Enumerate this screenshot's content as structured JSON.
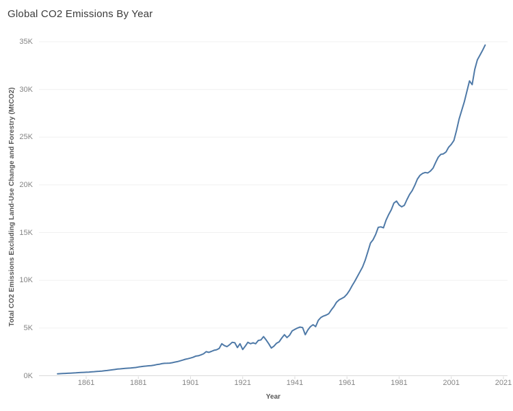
{
  "title": "Global CO2 Emissions By Year",
  "chart_data": {
    "type": "line",
    "title": "Global CO2 Emissions By Year",
    "xlabel": "Year",
    "ylabel": "Total CO2 Emissions Excluding Land-Use Change and Forestry (MtCO2)",
    "x_tick_values": [
      1861,
      1881,
      1901,
      1921,
      1941,
      1961,
      1981,
      2001,
      2021
    ],
    "x_tick_labels": [
      "1861",
      "1881",
      "1901",
      "1921",
      "1941",
      "1961",
      "1981",
      "2001",
      "2021"
    ],
    "y_tick_values": [
      0,
      5000,
      10000,
      15000,
      20000,
      25000,
      30000,
      35000
    ],
    "y_tick_labels": [
      "0K",
      "5K",
      "10K",
      "15K",
      "20K",
      "25K",
      "30K",
      "35K"
    ],
    "xlim": [
      1850,
      2022
    ],
    "ylim": [
      0,
      36200
    ],
    "grid": "horizontal-only",
    "legend": "none",
    "line_color": "#4e79a7",
    "series": [
      {
        "name": "Total CO2 Emissions Excluding Land-Use Change and Forestry (MtCO2)",
        "points": [
          [
            1850,
            200
          ],
          [
            1851,
            215
          ],
          [
            1852,
            230
          ],
          [
            1853,
            245
          ],
          [
            1854,
            260
          ],
          [
            1855,
            275
          ],
          [
            1856,
            290
          ],
          [
            1857,
            305
          ],
          [
            1858,
            320
          ],
          [
            1859,
            335
          ],
          [
            1860,
            350
          ],
          [
            1861,
            365
          ],
          [
            1862,
            380
          ],
          [
            1863,
            400
          ],
          [
            1864,
            420
          ],
          [
            1865,
            450
          ],
          [
            1866,
            470
          ],
          [
            1867,
            490
          ],
          [
            1868,
            515
          ],
          [
            1869,
            545
          ],
          [
            1870,
            580
          ],
          [
            1871,
            620
          ],
          [
            1872,
            655
          ],
          [
            1873,
            695
          ],
          [
            1874,
            715
          ],
          [
            1875,
            745
          ],
          [
            1876,
            770
          ],
          [
            1877,
            790
          ],
          [
            1878,
            805
          ],
          [
            1879,
            835
          ],
          [
            1880,
            865
          ],
          [
            1881,
            910
          ],
          [
            1882,
            950
          ],
          [
            1883,
            990
          ],
          [
            1884,
            1015
          ],
          [
            1885,
            1040
          ],
          [
            1886,
            1065
          ],
          [
            1887,
            1105
          ],
          [
            1888,
            1160
          ],
          [
            1889,
            1200
          ],
          [
            1890,
            1260
          ],
          [
            1891,
            1300
          ],
          [
            1892,
            1310
          ],
          [
            1893,
            1320
          ],
          [
            1894,
            1365
          ],
          [
            1895,
            1430
          ],
          [
            1896,
            1480
          ],
          [
            1897,
            1560
          ],
          [
            1898,
            1640
          ],
          [
            1899,
            1720
          ],
          [
            1900,
            1780
          ],
          [
            1901,
            1850
          ],
          [
            1902,
            1930
          ],
          [
            1903,
            2050
          ],
          [
            1904,
            2090
          ],
          [
            1905,
            2180
          ],
          [
            1906,
            2300
          ],
          [
            1907,
            2520
          ],
          [
            1908,
            2450
          ],
          [
            1909,
            2550
          ],
          [
            1910,
            2660
          ],
          [
            1911,
            2720
          ],
          [
            1912,
            2860
          ],
          [
            1913,
            3350
          ],
          [
            1914,
            3150
          ],
          [
            1915,
            3050
          ],
          [
            1916,
            3250
          ],
          [
            1917,
            3500
          ],
          [
            1918,
            3450
          ],
          [
            1919,
            2950
          ],
          [
            1920,
            3350
          ],
          [
            1921,
            2750
          ],
          [
            1922,
            3100
          ],
          [
            1923,
            3500
          ],
          [
            1924,
            3350
          ],
          [
            1925,
            3450
          ],
          [
            1926,
            3350
          ],
          [
            1927,
            3700
          ],
          [
            1928,
            3750
          ],
          [
            1929,
            4100
          ],
          [
            1930,
            3750
          ],
          [
            1931,
            3350
          ],
          [
            1932,
            2900
          ],
          [
            1933,
            3100
          ],
          [
            1934,
            3400
          ],
          [
            1935,
            3550
          ],
          [
            1936,
            3950
          ],
          [
            1937,
            4300
          ],
          [
            1938,
            4000
          ],
          [
            1939,
            4250
          ],
          [
            1940,
            4700
          ],
          [
            1941,
            4850
          ],
          [
            1942,
            5000
          ],
          [
            1943,
            5100
          ],
          [
            1944,
            5050
          ],
          [
            1945,
            4300
          ],
          [
            1946,
            4800
          ],
          [
            1947,
            5150
          ],
          [
            1948,
            5350
          ],
          [
            1949,
            5150
          ],
          [
            1950,
            5800
          ],
          [
            1951,
            6100
          ],
          [
            1952,
            6250
          ],
          [
            1953,
            6350
          ],
          [
            1954,
            6500
          ],
          [
            1955,
            6900
          ],
          [
            1956,
            7250
          ],
          [
            1957,
            7700
          ],
          [
            1958,
            7950
          ],
          [
            1959,
            8100
          ],
          [
            1960,
            8250
          ],
          [
            1961,
            8550
          ],
          [
            1962,
            8950
          ],
          [
            1963,
            9450
          ],
          [
            1964,
            9900
          ],
          [
            1965,
            10400
          ],
          [
            1966,
            10900
          ],
          [
            1967,
            11400
          ],
          [
            1968,
            12100
          ],
          [
            1969,
            13000
          ],
          [
            1970,
            13900
          ],
          [
            1971,
            14250
          ],
          [
            1972,
            14800
          ],
          [
            1973,
            15550
          ],
          [
            1974,
            15600
          ],
          [
            1975,
            15500
          ],
          [
            1976,
            16300
          ],
          [
            1977,
            16900
          ],
          [
            1978,
            17400
          ],
          [
            1979,
            18100
          ],
          [
            1980,
            18300
          ],
          [
            1981,
            17900
          ],
          [
            1982,
            17700
          ],
          [
            1983,
            17850
          ],
          [
            1984,
            18450
          ],
          [
            1985,
            19000
          ],
          [
            1986,
            19400
          ],
          [
            1987,
            19950
          ],
          [
            1988,
            20600
          ],
          [
            1989,
            21000
          ],
          [
            1990,
            21200
          ],
          [
            1991,
            21300
          ],
          [
            1992,
            21250
          ],
          [
            1993,
            21450
          ],
          [
            1994,
            21750
          ],
          [
            1995,
            22350
          ],
          [
            1996,
            22900
          ],
          [
            1997,
            23200
          ],
          [
            1998,
            23250
          ],
          [
            1999,
            23450
          ],
          [
            2000,
            23950
          ],
          [
            2001,
            24250
          ],
          [
            2002,
            24650
          ],
          [
            2003,
            25700
          ],
          [
            2004,
            26900
          ],
          [
            2005,
            27800
          ],
          [
            2006,
            28700
          ],
          [
            2007,
            29800
          ],
          [
            2008,
            30900
          ],
          [
            2009,
            30500
          ],
          [
            2010,
            32100
          ],
          [
            2011,
            33100
          ],
          [
            2012,
            33600
          ],
          [
            2013,
            34100
          ],
          [
            2014,
            34650
          ]
        ]
      }
    ]
  }
}
